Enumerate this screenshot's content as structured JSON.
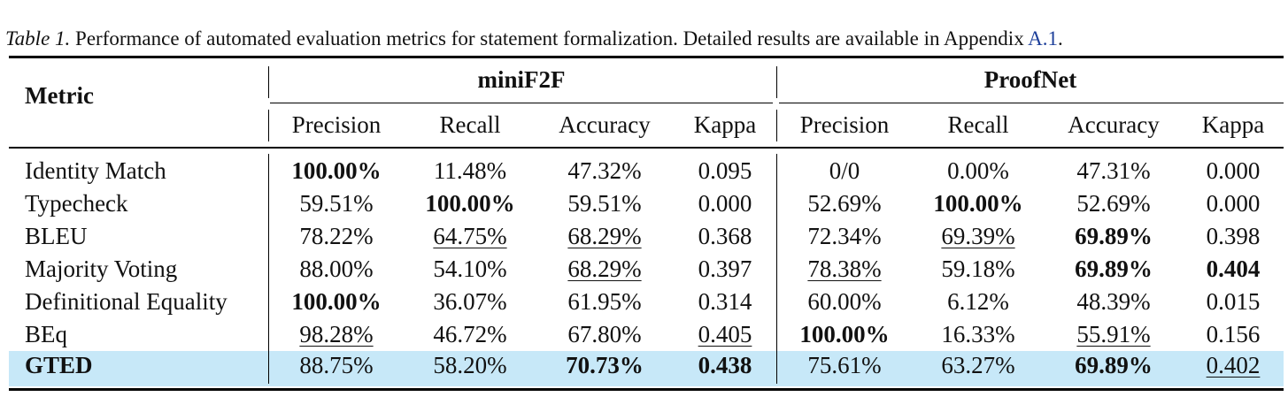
{
  "caption": {
    "label": "Table 1.",
    "text": " Performance of automated evaluation metrics for statement formalization. Detailed results are available in Appendix ",
    "ref": "A.1",
    "end": "."
  },
  "header": {
    "metric": "Metric",
    "groups": [
      "miniF2F",
      "ProofNet"
    ],
    "columns": [
      "Precision",
      "Recall",
      "Accuracy",
      "Kappa",
      "Precision",
      "Recall",
      "Accuracy",
      "Kappa"
    ]
  },
  "rows": [
    {
      "metric": "Identity Match",
      "cells": [
        {
          "v": "100.00%",
          "bold": true
        },
        {
          "v": "11.48%"
        },
        {
          "v": "47.32%"
        },
        {
          "v": "0.095"
        },
        {
          "v": "0/0"
        },
        {
          "v": "0.00%"
        },
        {
          "v": "47.31%"
        },
        {
          "v": "0.000"
        }
      ]
    },
    {
      "metric": "Typecheck",
      "cells": [
        {
          "v": "59.51%"
        },
        {
          "v": "100.00%",
          "bold": true
        },
        {
          "v": "59.51%"
        },
        {
          "v": "0.000"
        },
        {
          "v": "52.69%"
        },
        {
          "v": "100.00%",
          "bold": true
        },
        {
          "v": "52.69%"
        },
        {
          "v": "0.000"
        }
      ]
    },
    {
      "metric": "BLEU",
      "cells": [
        {
          "v": "78.22%"
        },
        {
          "v": "64.75%",
          "underline": true
        },
        {
          "v": "68.29%",
          "underline": true
        },
        {
          "v": "0.368"
        },
        {
          "v": "72.34%"
        },
        {
          "v": "69.39%",
          "underline": true
        },
        {
          "v": "69.89%",
          "bold": true
        },
        {
          "v": "0.398"
        }
      ]
    },
    {
      "metric": "Majority Voting",
      "cells": [
        {
          "v": "88.00%"
        },
        {
          "v": "54.10%"
        },
        {
          "v": "68.29%",
          "underline": true
        },
        {
          "v": "0.397"
        },
        {
          "v": "78.38%",
          "underline": true
        },
        {
          "v": "59.18%"
        },
        {
          "v": "69.89%",
          "bold": true
        },
        {
          "v": "0.404",
          "bold": true
        }
      ]
    },
    {
      "metric": "Definitional Equality",
      "cells": [
        {
          "v": "100.00%",
          "bold": true
        },
        {
          "v": "36.07%"
        },
        {
          "v": "61.95%"
        },
        {
          "v": "0.314"
        },
        {
          "v": "60.00%"
        },
        {
          "v": "6.12%"
        },
        {
          "v": "48.39%"
        },
        {
          "v": "0.015"
        }
      ]
    },
    {
      "metric": "BEq",
      "cells": [
        {
          "v": "98.28%",
          "underline": true
        },
        {
          "v": "46.72%"
        },
        {
          "v": "67.80%"
        },
        {
          "v": "0.405",
          "underline": true
        },
        {
          "v": "100.00%",
          "bold": true
        },
        {
          "v": "16.33%"
        },
        {
          "v": "55.91%",
          "underline": true
        },
        {
          "v": "0.156"
        }
      ]
    },
    {
      "metric": "GTED",
      "metric_bold": true,
      "highlight": true,
      "cells": [
        {
          "v": "88.75%"
        },
        {
          "v": "58.20%"
        },
        {
          "v": "70.73%",
          "bold": true
        },
        {
          "v": "0.438",
          "bold": true
        },
        {
          "v": "75.61%"
        },
        {
          "v": "63.27%"
        },
        {
          "v": "69.89%",
          "bold": true
        },
        {
          "v": "0.402",
          "underline": true
        }
      ]
    }
  ]
}
